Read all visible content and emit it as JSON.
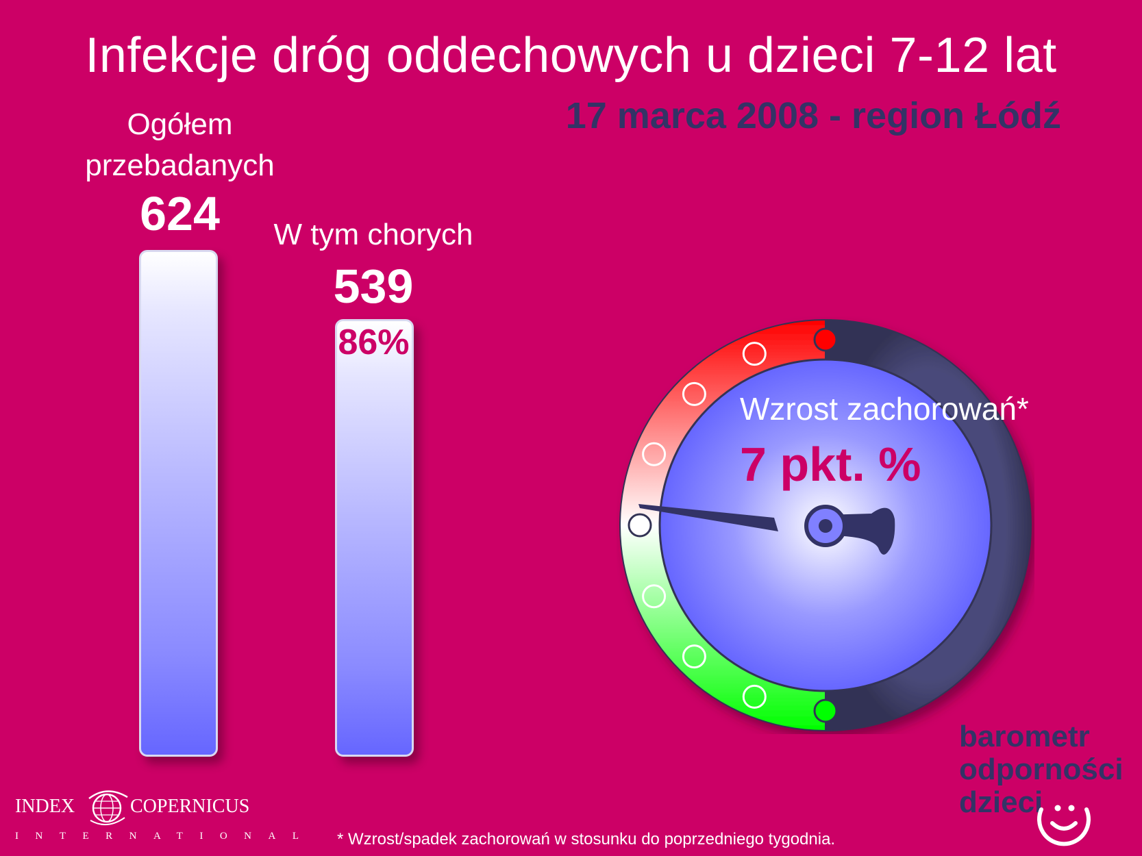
{
  "title": "Infekcje dróg oddechowych u dzieci 7-12 lat",
  "subtitle": "17 marca 2008 - region Łódź",
  "chart_data": {
    "type": "bar",
    "categories": [
      "Ogółem przebadanych",
      "W tym chorych"
    ],
    "values": [
      624,
      539
    ],
    "data_labels": [
      "624",
      "539"
    ],
    "bar_annotations": [
      "",
      "86%"
    ],
    "ylim": [
      0,
      624
    ]
  },
  "labels": {
    "total_line1": "Ogółem",
    "total_line2": "przebadanych",
    "total_value": "624",
    "sick_label": "W tym chorych",
    "sick_value": "539",
    "sick_percent": "86%"
  },
  "gauge": {
    "label": "Wzrost zachorowań*",
    "value_text": "7 pkt. %",
    "value": 7,
    "colors": {
      "increase": "#ff0000",
      "decrease": "#00ff00",
      "face": "#6666ff",
      "rim": "#333355"
    }
  },
  "footnote": "* Wzrost/spadek zachorowań w stosunku do poprzedniego tygodnia.",
  "brand": {
    "line1": "barometr",
    "line2": "odporności",
    "line3": "dzieci"
  },
  "logo": {
    "left": "INDEX",
    "right": "COPERNICUS",
    "sub": "INTERNATIONAL"
  }
}
